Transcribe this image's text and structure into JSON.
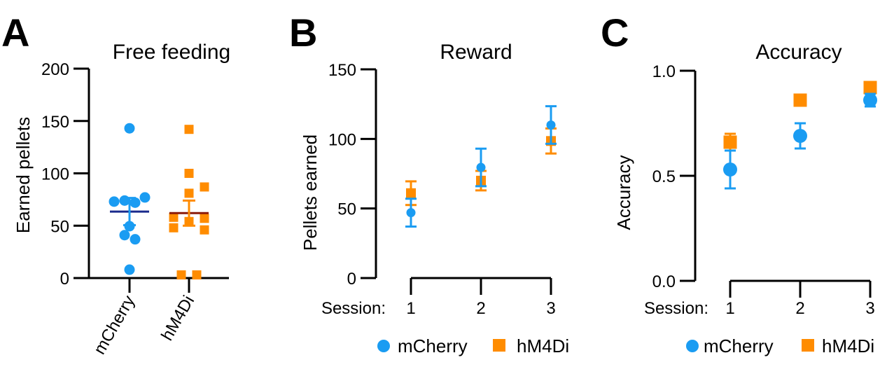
{
  "colors": {
    "mCherry": "#1a9cf2",
    "hM4Di": "#ff8c00",
    "mCherry_mean": "#1a2a8c",
    "hM4Di_mean": "#8b1a0a",
    "axis": "#000000"
  },
  "legend": {
    "items": [
      {
        "label": "mCherry",
        "marker": "circle"
      },
      {
        "label": "hM4Di",
        "marker": "square"
      }
    ],
    "placement": "bottom"
  },
  "chart_data": [
    {
      "panel": "A",
      "type": "scatter",
      "title": "Free feeding",
      "ylabel": "Earned pellets",
      "xlabel": "",
      "ylim": [
        0,
        200
      ],
      "yticks": [
        "0",
        "50",
        "100",
        "150",
        "200"
      ],
      "categories": [
        "mCherry",
        "hM4Di"
      ],
      "series": [
        {
          "name": "mCherry",
          "marker": "circle",
          "values": [
            143,
            73,
            74,
            72,
            77,
            49.5,
            41,
            37,
            8
          ],
          "mean": 63.5,
          "sem": 13
        },
        {
          "name": "hM4Di",
          "marker": "square",
          "values": [
            142,
            100,
            87,
            81,
            58,
            57,
            54,
            48,
            46,
            3,
            3
          ],
          "mean": 62,
          "sem": 12
        }
      ]
    },
    {
      "panel": "B",
      "type": "scatter",
      "title": "Reward",
      "ylabel": "Pellets earned",
      "xlabel": "Session:",
      "ylim": [
        0,
        150
      ],
      "yticks": [
        "0",
        "50",
        "100",
        "150"
      ],
      "x": [
        "1",
        "2",
        "3"
      ],
      "series": [
        {
          "name": "mCherry",
          "marker": "circle",
          "values": [
            47,
            79.5,
            110
          ],
          "err": [
            10,
            13.5,
            13.5
          ]
        },
        {
          "name": "hM4Di",
          "marker": "square",
          "values": [
            61,
            70,
            98.5
          ],
          "err": [
            8.5,
            7,
            9
          ]
        }
      ]
    },
    {
      "panel": "C",
      "type": "scatter",
      "title": "Accuracy",
      "ylabel": "Accuracy",
      "xlabel": "Session:",
      "ylim": [
        0,
        1
      ],
      "yticks": [
        "0.0",
        "0.5",
        "1.0"
      ],
      "x": [
        "1",
        "2",
        "3"
      ],
      "series": [
        {
          "name": "mCherry",
          "marker": "circle",
          "values": [
            0.53,
            0.69,
            0.86
          ],
          "err": [
            0.09,
            0.06,
            0.03
          ]
        },
        {
          "name": "hM4Di",
          "marker": "square",
          "values": [
            0.66,
            0.86,
            0.92
          ],
          "err": [
            0.04,
            0.02,
            0.01
          ]
        }
      ]
    }
  ]
}
